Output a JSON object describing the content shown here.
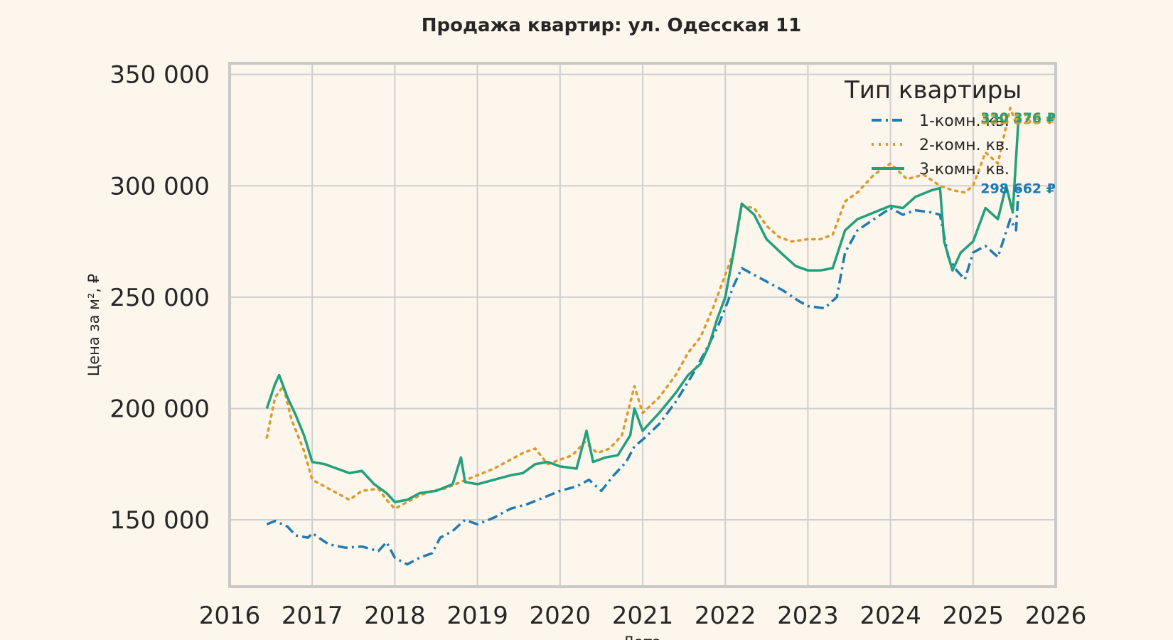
{
  "chart_data": {
    "type": "line",
    "title": "Продажа квартир: ул. Одесская 11",
    "xlabel": "Дата",
    "ylabel": "Цена за м², ₽",
    "xlim": [
      2016,
      2026
    ],
    "ylim": [
      120000,
      355000
    ],
    "grid": true,
    "x_ticks": [
      2016,
      2017,
      2018,
      2019,
      2020,
      2021,
      2022,
      2023,
      2024,
      2025,
      2026
    ],
    "x_tick_labels": [
      "2016",
      "2017",
      "2018",
      "2019",
      "2020",
      "2021",
      "2022",
      "2023",
      "2024",
      "2025",
      "2026"
    ],
    "y_ticks": [
      150000,
      200000,
      250000,
      300000,
      350000
    ],
    "y_tick_labels": [
      "150 000",
      "200 000",
      "250 000",
      "300 000",
      "350 000"
    ],
    "legend": {
      "title": "Тип квартиры",
      "placement": "top-right"
    },
    "series": [
      {
        "name": "1-комн. кв.",
        "color": "#1f7bb0",
        "style": "dashdot",
        "end_label": "298 662 ₽",
        "points": [
          [
            2016.45,
            148000
          ],
          [
            2016.55,
            149500
          ],
          [
            2016.7,
            147000
          ],
          [
            2016.8,
            143000
          ],
          [
            2016.95,
            142000
          ],
          [
            2017.0,
            144000
          ],
          [
            2017.2,
            139000
          ],
          [
            2017.4,
            137500
          ],
          [
            2017.6,
            138000
          ],
          [
            2017.8,
            136000
          ],
          [
            2017.9,
            140000
          ],
          [
            2018.0,
            133000
          ],
          [
            2018.15,
            130000
          ],
          [
            2018.3,
            133000
          ],
          [
            2018.45,
            135000
          ],
          [
            2018.55,
            142000
          ],
          [
            2018.7,
            145000
          ],
          [
            2018.85,
            150000
          ],
          [
            2019.0,
            148000
          ],
          [
            2019.2,
            151000
          ],
          [
            2019.4,
            155000
          ],
          [
            2019.6,
            157000
          ],
          [
            2019.8,
            160000
          ],
          [
            2020.0,
            163000
          ],
          [
            2020.2,
            165000
          ],
          [
            2020.35,
            168000
          ],
          [
            2020.5,
            163000
          ],
          [
            2020.65,
            170000
          ],
          [
            2020.8,
            176000
          ],
          [
            2020.9,
            183000
          ],
          [
            2021.0,
            186000
          ],
          [
            2021.2,
            193000
          ],
          [
            2021.4,
            203000
          ],
          [
            2021.6,
            215000
          ],
          [
            2021.75,
            225000
          ],
          [
            2021.9,
            236000
          ],
          [
            2022.0,
            245000
          ],
          [
            2022.1,
            255000
          ],
          [
            2022.2,
            263000
          ],
          [
            2022.35,
            260000
          ],
          [
            2022.5,
            257000
          ],
          [
            2022.7,
            253000
          ],
          [
            2022.9,
            248000
          ],
          [
            2023.0,
            246000
          ],
          [
            2023.2,
            245000
          ],
          [
            2023.35,
            250000
          ],
          [
            2023.45,
            270000
          ],
          [
            2023.6,
            280000
          ],
          [
            2023.8,
            285000
          ],
          [
            2024.0,
            290000
          ],
          [
            2024.15,
            287000
          ],
          [
            2024.3,
            289000
          ],
          [
            2024.5,
            288000
          ],
          [
            2024.6,
            287000
          ],
          [
            2024.7,
            268000
          ],
          [
            2024.8,
            262000
          ],
          [
            2024.9,
            258000
          ],
          [
            2025.0,
            270000
          ],
          [
            2025.15,
            273000
          ],
          [
            2025.3,
            268000
          ],
          [
            2025.45,
            285000
          ],
          [
            2025.52,
            280000
          ],
          [
            2025.55,
            298662
          ]
        ]
      },
      {
        "name": "2-комн. кв.",
        "color": "#db9b2c",
        "style": "dotted",
        "end_label": "329 538 ₽",
        "points": [
          [
            2016.45,
            187000
          ],
          [
            2016.55,
            205000
          ],
          [
            2016.65,
            210000
          ],
          [
            2016.75,
            195000
          ],
          [
            2016.9,
            181000
          ],
          [
            2017.0,
            168000
          ],
          [
            2017.15,
            165000
          ],
          [
            2017.3,
            162000
          ],
          [
            2017.45,
            159000
          ],
          [
            2017.6,
            163000
          ],
          [
            2017.8,
            164000
          ],
          [
            2017.9,
            159000
          ],
          [
            2018.0,
            155000
          ],
          [
            2018.15,
            158000
          ],
          [
            2018.3,
            161000
          ],
          [
            2018.45,
            163000
          ],
          [
            2018.6,
            164000
          ],
          [
            2018.8,
            167000
          ],
          [
            2019.0,
            170000
          ],
          [
            2019.2,
            173000
          ],
          [
            2019.4,
            177000
          ],
          [
            2019.55,
            180000
          ],
          [
            2019.7,
            182000
          ],
          [
            2019.85,
            175000
          ],
          [
            2020.0,
            177000
          ],
          [
            2020.15,
            179000
          ],
          [
            2020.3,
            185000
          ],
          [
            2020.45,
            180000
          ],
          [
            2020.6,
            182000
          ],
          [
            2020.75,
            188000
          ],
          [
            2020.9,
            210000
          ],
          [
            2021.0,
            198000
          ],
          [
            2021.2,
            205000
          ],
          [
            2021.4,
            215000
          ],
          [
            2021.55,
            225000
          ],
          [
            2021.7,
            232000
          ],
          [
            2021.85,
            245000
          ],
          [
            2022.0,
            260000
          ],
          [
            2022.1,
            270000
          ],
          [
            2022.2,
            291000
          ],
          [
            2022.35,
            290000
          ],
          [
            2022.5,
            282000
          ],
          [
            2022.65,
            277000
          ],
          [
            2022.8,
            275000
          ],
          [
            2023.0,
            276000
          ],
          [
            2023.15,
            276000
          ],
          [
            2023.3,
            278000
          ],
          [
            2023.45,
            293000
          ],
          [
            2023.6,
            297000
          ],
          [
            2023.8,
            305000
          ],
          [
            2024.0,
            310000
          ],
          [
            2024.2,
            303000
          ],
          [
            2024.4,
            305000
          ],
          [
            2024.6,
            300000
          ],
          [
            2024.75,
            298000
          ],
          [
            2024.9,
            297000
          ],
          [
            2025.0,
            300000
          ],
          [
            2025.15,
            315000
          ],
          [
            2025.3,
            310000
          ],
          [
            2025.45,
            335000
          ],
          [
            2025.52,
            328000
          ],
          [
            2025.55,
            329538
          ]
        ]
      },
      {
        "name": "3-комн. кв.",
        "color": "#21a07d",
        "style": "solid",
        "end_label": "330 376 ₽",
        "points": [
          [
            2016.45,
            200000
          ],
          [
            2016.55,
            211000
          ],
          [
            2016.6,
            215000
          ],
          [
            2016.7,
            205000
          ],
          [
            2016.8,
            197000
          ],
          [
            2016.9,
            188000
          ],
          [
            2017.0,
            176000
          ],
          [
            2017.15,
            175000
          ],
          [
            2017.3,
            173000
          ],
          [
            2017.45,
            171000
          ],
          [
            2017.6,
            172000
          ],
          [
            2017.75,
            166000
          ],
          [
            2017.9,
            162000
          ],
          [
            2018.0,
            158000
          ],
          [
            2018.15,
            159000
          ],
          [
            2018.3,
            162000
          ],
          [
            2018.5,
            163000
          ],
          [
            2018.7,
            166000
          ],
          [
            2018.8,
            178000
          ],
          [
            2018.85,
            167000
          ],
          [
            2019.0,
            166000
          ],
          [
            2019.2,
            168000
          ],
          [
            2019.4,
            170000
          ],
          [
            2019.55,
            171000
          ],
          [
            2019.7,
            175000
          ],
          [
            2019.85,
            176000
          ],
          [
            2020.0,
            174000
          ],
          [
            2020.2,
            173000
          ],
          [
            2020.32,
            190000
          ],
          [
            2020.4,
            176000
          ],
          [
            2020.55,
            178000
          ],
          [
            2020.7,
            179000
          ],
          [
            2020.85,
            188000
          ],
          [
            2020.9,
            200000
          ],
          [
            2021.0,
            190000
          ],
          [
            2021.2,
            198000
          ],
          [
            2021.4,
            207000
          ],
          [
            2021.55,
            215000
          ],
          [
            2021.7,
            220000
          ],
          [
            2021.8,
            228000
          ],
          [
            2021.9,
            240000
          ],
          [
            2022.0,
            250000
          ],
          [
            2022.1,
            270000
          ],
          [
            2022.2,
            292000
          ],
          [
            2022.35,
            287000
          ],
          [
            2022.5,
            276000
          ],
          [
            2022.7,
            269000
          ],
          [
            2022.85,
            264000
          ],
          [
            2023.0,
            262000
          ],
          [
            2023.15,
            262000
          ],
          [
            2023.3,
            263000
          ],
          [
            2023.45,
            280000
          ],
          [
            2023.6,
            285000
          ],
          [
            2023.8,
            288000
          ],
          [
            2024.0,
            291000
          ],
          [
            2024.15,
            290000
          ],
          [
            2024.3,
            295000
          ],
          [
            2024.5,
            298000
          ],
          [
            2024.6,
            299000
          ],
          [
            2024.65,
            275000
          ],
          [
            2024.75,
            262000
          ],
          [
            2024.85,
            270000
          ],
          [
            2025.0,
            275000
          ],
          [
            2025.15,
            290000
          ],
          [
            2025.3,
            285000
          ],
          [
            2025.4,
            300000
          ],
          [
            2025.48,
            288000
          ],
          [
            2025.55,
            330376
          ]
        ]
      }
    ]
  }
}
